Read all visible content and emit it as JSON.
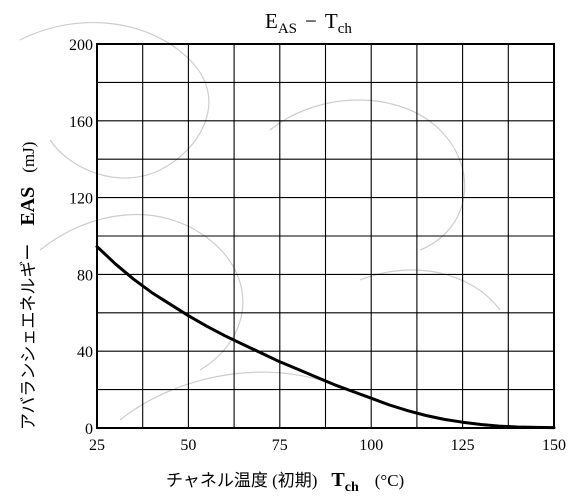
{
  "chart_data": {
    "type": "line",
    "title": {
      "main": "E",
      "main_sub": "AS",
      "dash": "−",
      "var": "T",
      "var_sub": "ch"
    },
    "xlabel": {
      "text": "チャネル温度 (初期)",
      "symbol": "T",
      "symbol_sub": "ch",
      "unit": "(°C)"
    },
    "ylabel": {
      "text": "アバランシェエネルギー",
      "symbol": "EAS",
      "unit": "(mJ)"
    },
    "xlim": [
      25,
      150
    ],
    "ylim": [
      0,
      200
    ],
    "x_ticks": [
      25,
      50,
      75,
      100,
      125,
      150
    ],
    "y_ticks": [
      0,
      40,
      80,
      120,
      160,
      200
    ],
    "grid": true,
    "grid_x_step": 12.5,
    "grid_y_step": 20,
    "series": [
      {
        "x": [
          25,
          30,
          35,
          40,
          45,
          50,
          55,
          60,
          65,
          70,
          75,
          80,
          85,
          90,
          95,
          100,
          105,
          110,
          115,
          120,
          125,
          130,
          135,
          140,
          145,
          150
        ],
        "y": [
          94.5,
          85.5,
          77.5,
          70.5,
          64.5,
          58.5,
          53,
          48,
          43.5,
          39,
          34.5,
          30.5,
          26.5,
          22.5,
          19,
          15.5,
          12,
          9,
          6.5,
          4.5,
          3,
          1.8,
          1,
          0.5,
          0.3,
          0.2
        ]
      }
    ]
  }
}
